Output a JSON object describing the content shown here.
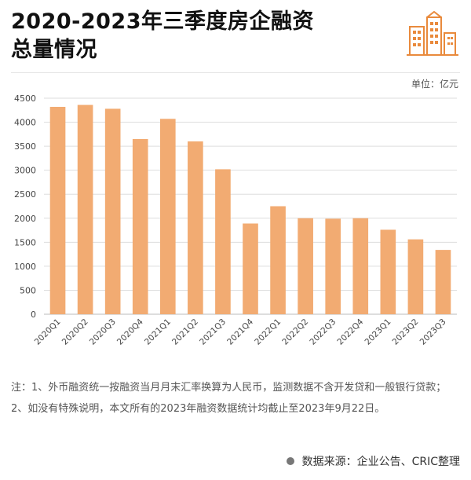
{
  "header": {
    "title_line1": "2020-2023年三季度房企融资",
    "title_line2": "总量情况"
  },
  "logo_icon": "buildings-icon",
  "unit_label": "单位：亿元",
  "colors": {
    "bar": "#f2ab72",
    "accent": "#e98a3c",
    "grid": "#dddddd"
  },
  "chart_data": {
    "type": "bar",
    "title": "2020-2023年三季度房企融资总量情况",
    "categories": [
      "2020Q1",
      "2020Q2",
      "2020Q3",
      "2020Q4",
      "2021Q1",
      "2021Q2",
      "2021Q3",
      "2021Q4",
      "2022Q1",
      "2022Q2",
      "2022Q3",
      "2022Q4",
      "2023Q1",
      "2023Q2",
      "2023Q3"
    ],
    "values": [
      4320,
      4360,
      4280,
      3650,
      4070,
      3600,
      3020,
      1890,
      2250,
      2000,
      1990,
      2000,
      1760,
      1560,
      1340
    ],
    "ylim": [
      0,
      4500
    ],
    "yticks": [
      0,
      500,
      1000,
      1500,
      2000,
      2500,
      3000,
      3500,
      4000,
      4500
    ],
    "grid": true,
    "legend": "none"
  },
  "notes": {
    "line1": "注：1、外币融资统一按融资当月月末汇率换算为人民币，监测数据不含开发贷和一般银行贷款；",
    "line2": "2、如没有特殊说明，本文所有的2023年融资数据统计均截止至2023年9月22日。"
  },
  "source": "数据来源：企业公告、CRIC整理"
}
